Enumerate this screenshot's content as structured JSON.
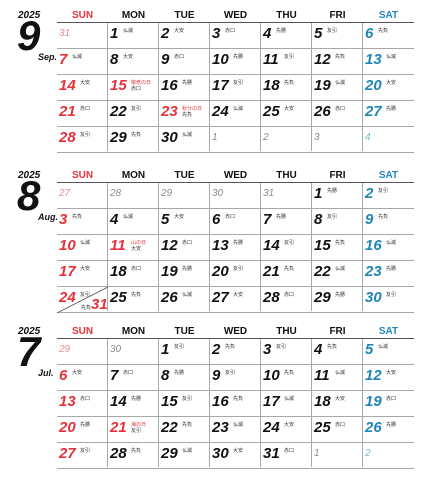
{
  "weekday_headers": [
    "SUN",
    "MON",
    "TUE",
    "WED",
    "THU",
    "FRI",
    "SAT"
  ],
  "months": [
    {
      "year": "2025",
      "number": "9",
      "abbr": "Sep.",
      "weeks": [
        [
          {
            "d": "31",
            "cur": false
          },
          {
            "d": "1",
            "l": "仏滅"
          },
          {
            "d": "2",
            "l": "大安"
          },
          {
            "d": "3",
            "l": "赤口"
          },
          {
            "d": "4",
            "l": "先勝"
          },
          {
            "d": "5",
            "l": "友引"
          },
          {
            "d": "6",
            "l": "先負"
          }
        ],
        [
          {
            "d": "7",
            "l": "仏滅"
          },
          {
            "d": "8",
            "l": "大安"
          },
          {
            "d": "9",
            "l": "赤口"
          },
          {
            "d": "10",
            "l": "先勝"
          },
          {
            "d": "11",
            "l": "友引"
          },
          {
            "d": "12",
            "l": "先負"
          },
          {
            "d": "13",
            "l": "仏滅"
          }
        ],
        [
          {
            "d": "14",
            "l": "大安"
          },
          {
            "d": "15",
            "l": "敬老の日",
            "l2": "赤口",
            "hol": true
          },
          {
            "d": "16",
            "l": "先勝"
          },
          {
            "d": "17",
            "l": "友引"
          },
          {
            "d": "18",
            "l": "先負"
          },
          {
            "d": "19",
            "l": "仏滅"
          },
          {
            "d": "20",
            "l": "大安"
          }
        ],
        [
          {
            "d": "21",
            "l": "赤口"
          },
          {
            "d": "22",
            "l": "友引"
          },
          {
            "d": "23",
            "l": "秋分の日",
            "l2": "先負",
            "hol": true
          },
          {
            "d": "24",
            "l": "仏滅"
          },
          {
            "d": "25",
            "l": "大安"
          },
          {
            "d": "26",
            "l": "赤口"
          },
          {
            "d": "27",
            "l": "先勝"
          }
        ],
        [
          {
            "d": "28",
            "l": "友引"
          },
          {
            "d": "29",
            "l": "先負"
          },
          {
            "d": "30",
            "l": "仏滅"
          },
          {
            "d": "1",
            "cur": false
          },
          {
            "d": "2",
            "cur": false
          },
          {
            "d": "3",
            "cur": false
          },
          {
            "d": "4",
            "cur": false
          }
        ]
      ]
    },
    {
      "year": "2025",
      "number": "8",
      "abbr": "Aug.",
      "weeks": [
        [
          {
            "d": "27",
            "cur": false
          },
          {
            "d": "28",
            "cur": false
          },
          {
            "d": "29",
            "cur": false
          },
          {
            "d": "30",
            "cur": false
          },
          {
            "d": "31",
            "cur": false
          },
          {
            "d": "1",
            "l": "先勝"
          },
          {
            "d": "2",
            "l": "友引"
          }
        ],
        [
          {
            "d": "3",
            "l": "先負"
          },
          {
            "d": "4",
            "l": "仏滅"
          },
          {
            "d": "5",
            "l": "大安"
          },
          {
            "d": "6",
            "l": "赤口"
          },
          {
            "d": "7",
            "l": "先勝"
          },
          {
            "d": "8",
            "l": "友引"
          },
          {
            "d": "9",
            "l": "先負"
          }
        ],
        [
          {
            "d": "10",
            "l": "仏滅"
          },
          {
            "d": "11",
            "l": "山の日",
            "l2": "大安",
            "hol": true
          },
          {
            "d": "12",
            "l": "赤口"
          },
          {
            "d": "13",
            "l": "先勝"
          },
          {
            "d": "14",
            "l": "友引"
          },
          {
            "d": "15",
            "l": "先負"
          },
          {
            "d": "16",
            "l": "仏滅"
          }
        ],
        [
          {
            "d": "17",
            "l": "大安"
          },
          {
            "d": "18",
            "l": "赤口"
          },
          {
            "d": "19",
            "l": "先勝"
          },
          {
            "d": "20",
            "l": "友引"
          },
          {
            "d": "21",
            "l": "先負"
          },
          {
            "d": "22",
            "l": "仏滅"
          },
          {
            "d": "23",
            "l": "先勝"
          }
        ],
        [
          {
            "d": "24",
            "l": "友引",
            "split": {
              "d": "31",
              "l": "先負"
            }
          },
          {
            "d": "25",
            "l": "先負"
          },
          {
            "d": "26",
            "l": "仏滅"
          },
          {
            "d": "27",
            "l": "大安"
          },
          {
            "d": "28",
            "l": "赤口"
          },
          {
            "d": "29",
            "l": "先勝"
          },
          {
            "d": "30",
            "l": "友引"
          }
        ]
      ]
    },
    {
      "year": "2025",
      "number": "7",
      "abbr": "Jul.",
      "weeks": [
        [
          {
            "d": "29",
            "cur": false
          },
          {
            "d": "30",
            "cur": false
          },
          {
            "d": "1",
            "l": "友引"
          },
          {
            "d": "2",
            "l": "先負"
          },
          {
            "d": "3",
            "l": "友引"
          },
          {
            "d": "4",
            "l": "先負"
          },
          {
            "d": "5",
            "l": "仏滅"
          }
        ],
        [
          {
            "d": "6",
            "l": "大安"
          },
          {
            "d": "7",
            "l": "赤口"
          },
          {
            "d": "8",
            "l": "先勝"
          },
          {
            "d": "9",
            "l": "友引"
          },
          {
            "d": "10",
            "l": "先負"
          },
          {
            "d": "11",
            "l": "仏滅"
          },
          {
            "d": "12",
            "l": "大安"
          }
        ],
        [
          {
            "d": "13",
            "l": "赤口"
          },
          {
            "d": "14",
            "l": "先勝"
          },
          {
            "d": "15",
            "l": "友引"
          },
          {
            "d": "16",
            "l": "先負"
          },
          {
            "d": "17",
            "l": "仏滅"
          },
          {
            "d": "18",
            "l": "大安"
          },
          {
            "d": "19",
            "l": "赤口"
          }
        ],
        [
          {
            "d": "20",
            "l": "先勝"
          },
          {
            "d": "21",
            "l": "海の日",
            "l2": "友引",
            "hol": true
          },
          {
            "d": "22",
            "l": "先負"
          },
          {
            "d": "23",
            "l": "仏滅"
          },
          {
            "d": "24",
            "l": "大安"
          },
          {
            "d": "25",
            "l": "赤口"
          },
          {
            "d": "26",
            "l": "先勝"
          }
        ],
        [
          {
            "d": "27",
            "l": "友引"
          },
          {
            "d": "28",
            "l": "先負"
          },
          {
            "d": "29",
            "l": "仏滅"
          },
          {
            "d": "30",
            "l": "大安"
          },
          {
            "d": "31",
            "l": "赤口"
          },
          {
            "d": "1",
            "cur": false
          },
          {
            "d": "2",
            "cur": false
          }
        ]
      ]
    }
  ]
}
